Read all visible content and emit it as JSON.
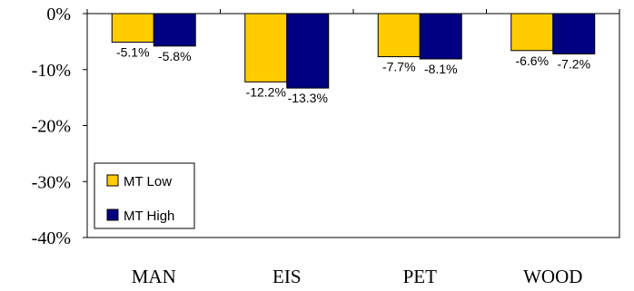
{
  "chart_data": {
    "type": "bar",
    "categories": [
      "MAN",
      "EIS",
      "PET",
      "WOOD"
    ],
    "series": [
      {
        "name": "MT Low",
        "values": [
          -5.1,
          -12.2,
          -7.7,
          -6.6
        ],
        "color": "#FFCC00"
      },
      {
        "name": "MT High",
        "values": [
          -5.8,
          -13.3,
          -8.1,
          -7.2
        ],
        "color": "#000080"
      }
    ],
    "data_labels": [
      [
        "-5.1%",
        "-12.2%",
        "-7.7%",
        "-6.6%"
      ],
      [
        "-5.8%",
        "-13.3%",
        "-8.1%",
        "-7.2%"
      ]
    ],
    "y_ticks": [
      0,
      -10,
      -20,
      -30,
      -40
    ],
    "y_tick_labels": [
      "0%",
      "-10%",
      "-20%",
      "-30%",
      "-40%"
    ],
    "ylim": [
      -40,
      0
    ],
    "title": "",
    "xlabel": "",
    "ylabel": "",
    "grid": false,
    "legend_position": "bottom-left"
  }
}
